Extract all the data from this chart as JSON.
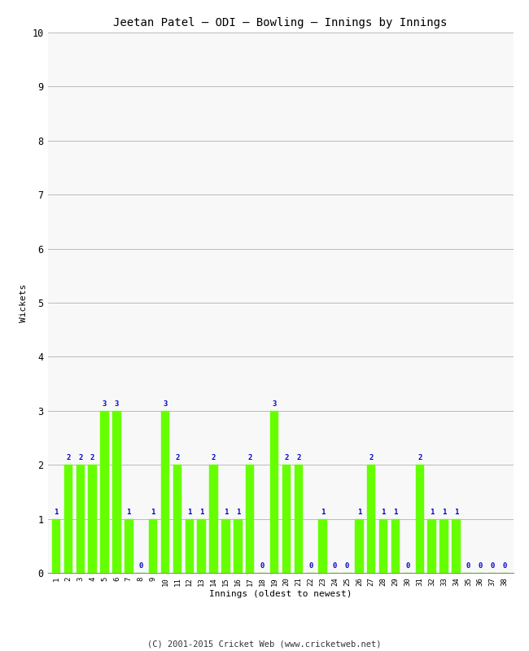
{
  "title": "Jeetan Patel – ODI – Bowling – Innings by Innings",
  "xlabel": "Innings (oldest to newest)",
  "ylabel": "Wickets",
  "ylim": [
    0,
    10
  ],
  "yticks": [
    0,
    1,
    2,
    3,
    4,
    5,
    6,
    7,
    8,
    9,
    10
  ],
  "bar_color": "#66ff00",
  "bar_edge_color": "#66ff00",
  "label_color": "#0000cc",
  "background_color": "#ffffff",
  "plot_bg_color": "#f8f8f8",
  "footer": "(C) 2001-2015 Cricket Web (www.cricketweb.net)",
  "innings": [
    1,
    2,
    3,
    4,
    5,
    6,
    7,
    8,
    9,
    10,
    11,
    12,
    13,
    14,
    15,
    16,
    17,
    18,
    19,
    20,
    21,
    22,
    23,
    24,
    25,
    26,
    27,
    28,
    29,
    30,
    31,
    32,
    33,
    34,
    35,
    36,
    37,
    38
  ],
  "wickets": [
    1,
    2,
    2,
    2,
    3,
    3,
    1,
    0,
    1,
    3,
    2,
    1,
    1,
    2,
    1,
    1,
    2,
    0,
    3,
    2,
    2,
    0,
    1,
    0,
    0,
    1,
    2,
    1,
    1,
    0,
    2,
    1,
    1,
    1,
    0,
    0,
    0,
    0
  ]
}
